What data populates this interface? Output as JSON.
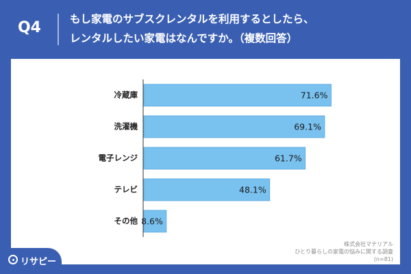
{
  "header": {
    "q_label": "Q4",
    "title_line1": "もし家電のサブスクレンタルを利用するとしたら、",
    "title_line2": "レンタルしたい家電はなんですか。（複数回答）"
  },
  "colors": {
    "background": "#3a5fb2",
    "bar_fill": "#79c1ef",
    "bar_stroke": "#5aa8df",
    "panel": "#ffffff"
  },
  "chart_data": {
    "type": "bar",
    "orientation": "horizontal",
    "categories": [
      "冷蔵庫",
      "洗濯機",
      "電子レンジ",
      "テレビ",
      "その他"
    ],
    "values": [
      71.6,
      69.1,
      61.7,
      48.1,
      8.6
    ],
    "value_labels": [
      "71.6%",
      "69.1%",
      "61.7%",
      "48.1%",
      "8.6%"
    ],
    "xlim": [
      0,
      100
    ],
    "grid": false,
    "legend": "none"
  },
  "source": {
    "company": "株式会社マテリアル",
    "survey": "ひとり暮らしの家電の悩みに関する調査",
    "sample": "(n=81)"
  },
  "logo": {
    "text": "リサピー",
    "icon": "pin-icon"
  }
}
